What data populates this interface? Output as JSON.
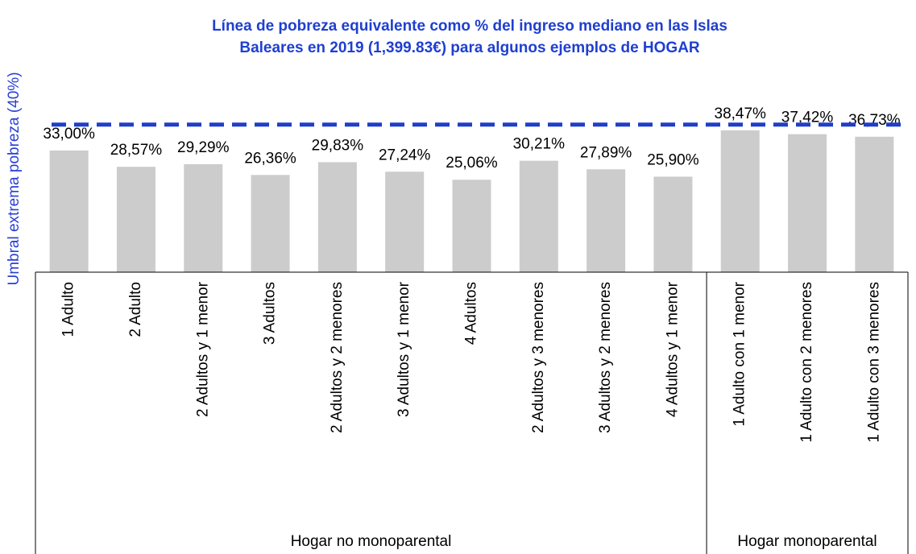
{
  "chart_data": {
    "type": "bar",
    "title": [
      "Línea de pobreza equivalente como % del ingreso mediano en las Islas",
      "Baleares  en 2019 (1,399.83€) para algunos ejemplos de HOGAR"
    ],
    "y_label": "Umbral extrema pobreza (40%)",
    "groups": [
      {
        "label": "Hogar no monoparental",
        "categories": [
          "1 Adulto",
          "2 Adulto",
          "2 Adultos y 1 menor",
          "3 Adultos",
          "2 Adultos y 2 menores",
          "3 Adultos y 1 menor",
          "4 Adultos",
          "2 Adultos y 3 menores",
          "3 Adultos y 2 menores",
          "4 Adultos y 1 menor"
        ]
      },
      {
        "label": "Hogar monoparental",
        "categories": [
          "1 Adulto con 1 menor",
          "1 Adulto con 2 menores",
          "1 Adulto con 3 menores"
        ]
      }
    ],
    "values": [
      33.0,
      28.57,
      29.29,
      26.36,
      29.83,
      27.24,
      25.06,
      30.21,
      27.89,
      25.9,
      38.47,
      37.42,
      36.73
    ],
    "value_labels": [
      "33,00%",
      "28,57%",
      "29,29%",
      "26,36%",
      "29,83%",
      "27,24%",
      "25,06%",
      "30,21%",
      "27,89%",
      "25,90%",
      "38,47%",
      "37,42%",
      "36,73%"
    ],
    "color": "#cccccc",
    "reference_line": {
      "value": 40,
      "color": "#1f3fc8"
    },
    "title_color": "#1f3fd0",
    "ylim": [
      0,
      45
    ]
  }
}
